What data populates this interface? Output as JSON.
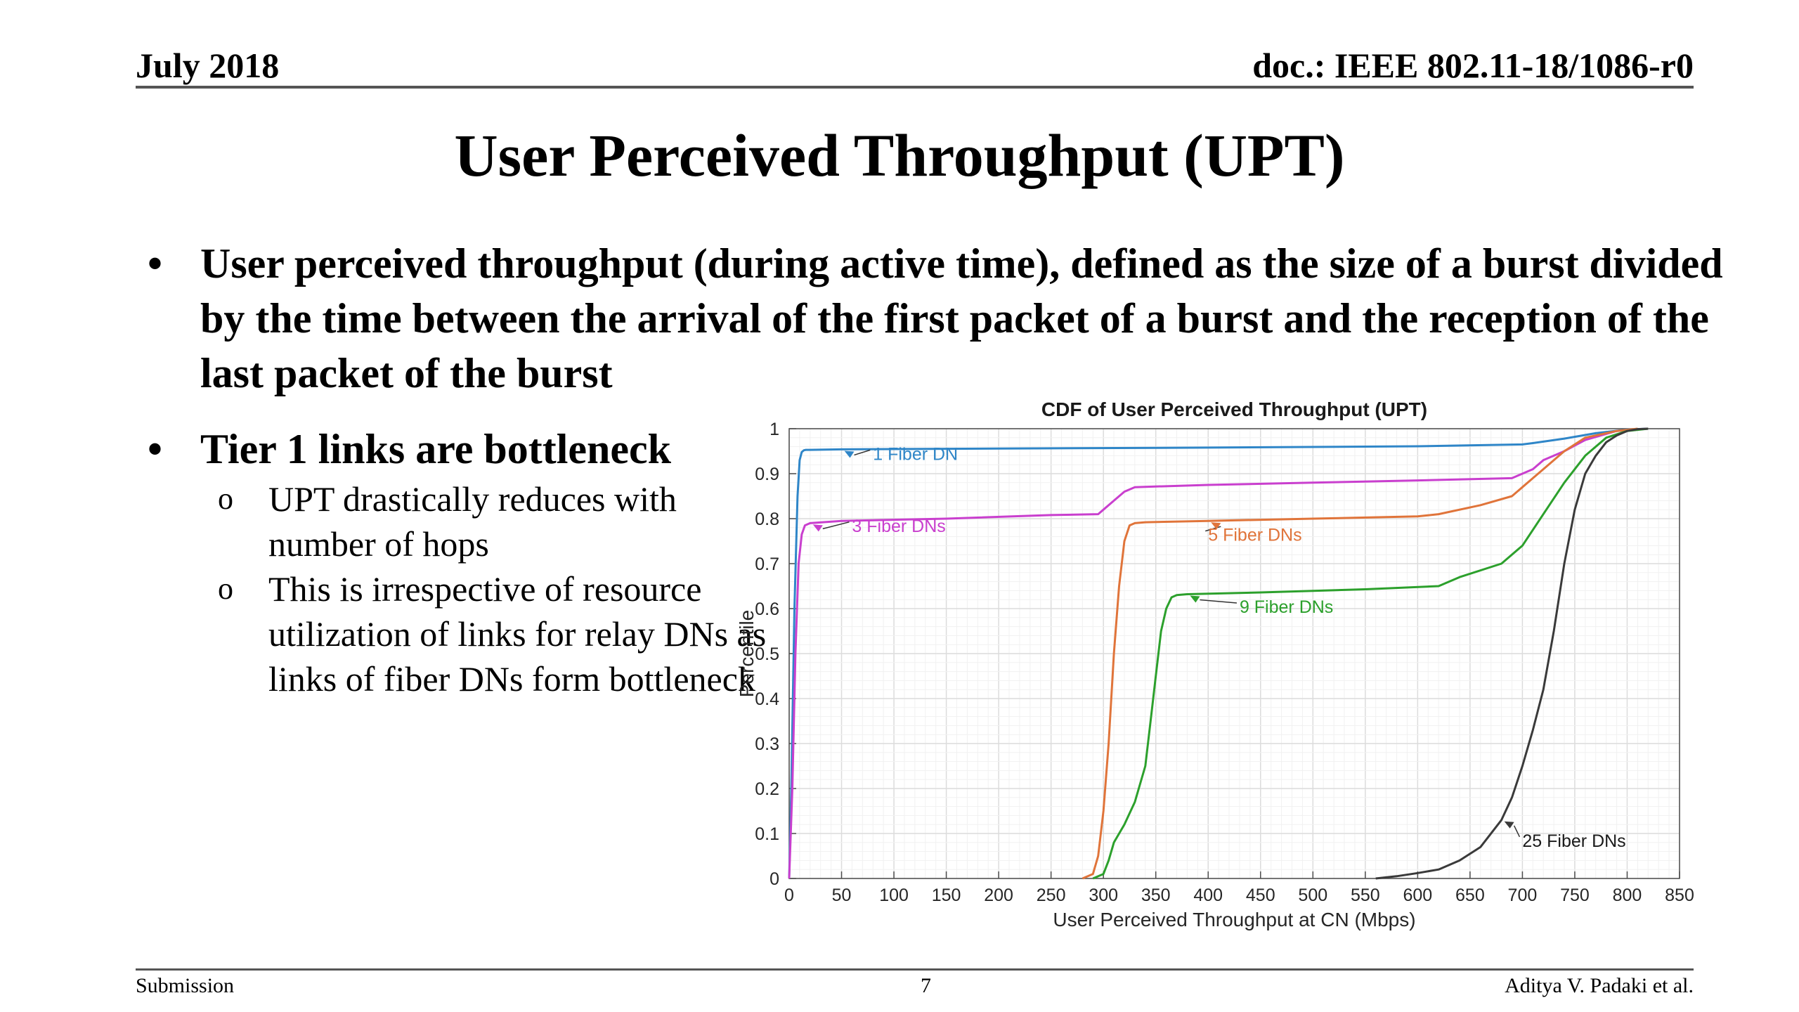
{
  "header": {
    "date": "July  2018",
    "doc": "doc.: IEEE 802.11-18/1086-r0"
  },
  "slide": {
    "title": "User Perceived Throughput (UPT)",
    "bullet_symbol": "•",
    "sub_symbol": "o",
    "bullets": [
      "User perceived throughput (during active time), defined as the size of a burst divided by the time between the arrival of the first packet of a burst and the reception of the last packet of the burst",
      "Tier 1 links are bottleneck"
    ],
    "sub_bullets": [
      "UPT drastically reduces with number of hops",
      "This is irrespective of resource utilization of links for relay DNs as links of fiber DNs form bottleneck"
    ]
  },
  "footer": {
    "left": "Submission",
    "page": "7",
    "right": "Aditya V. Padaki et al."
  },
  "chart_data": {
    "type": "line",
    "title": "CDF of User Perceived Throughput (UPT)",
    "xlabel": "User Perceived Throughput at CN (Mbps)",
    "ylabel": "Percentile",
    "xlim": [
      0,
      850
    ],
    "ylim": [
      0,
      1
    ],
    "xticks": [
      0,
      50,
      100,
      150,
      200,
      250,
      300,
      350,
      400,
      450,
      500,
      550,
      600,
      650,
      700,
      750,
      800,
      850
    ],
    "yticks": [
      0,
      0.1,
      0.2,
      0.3,
      0.4,
      0.5,
      0.6,
      0.7,
      0.8,
      0.9,
      1
    ],
    "grid": true,
    "series": [
      {
        "name": "1 Fiber DN",
        "color": "#2f86c8",
        "label_at": [
          80,
          0.94
        ],
        "x": [
          0,
          2,
          5,
          8,
          10,
          12,
          14,
          16,
          20,
          50,
          200,
          400,
          600,
          700,
          710,
          740,
          770,
          800,
          820
        ],
        "y": [
          0,
          0.2,
          0.6,
          0.85,
          0.93,
          0.948,
          0.952,
          0.953,
          0.953,
          0.954,
          0.956,
          0.958,
          0.961,
          0.965,
          0.968,
          0.978,
          0.99,
          0.998,
          1.0
        ]
      },
      {
        "name": "3 Fiber DNs",
        "color": "#c93fce",
        "label_at": [
          60,
          0.78
        ],
        "x": [
          0,
          3,
          6,
          9,
          12,
          15,
          20,
          50,
          150,
          250,
          295,
          300,
          310,
          320,
          330,
          400,
          500,
          600,
          690,
          700,
          710,
          720,
          740,
          760,
          790,
          820
        ],
        "y": [
          0,
          0.2,
          0.5,
          0.7,
          0.765,
          0.785,
          0.79,
          0.795,
          0.8,
          0.808,
          0.81,
          0.82,
          0.84,
          0.86,
          0.87,
          0.875,
          0.88,
          0.885,
          0.89,
          0.9,
          0.91,
          0.93,
          0.95,
          0.975,
          0.995,
          1.0
        ]
      },
      {
        "name": "5 Fiber DNs",
        "color": "#e0743a",
        "label_at": [
          400,
          0.76
        ],
        "x": [
          280,
          290,
          295,
          300,
          305,
          310,
          315,
          320,
          325,
          330,
          340,
          400,
          500,
          600,
          620,
          660,
          690,
          700,
          710,
          720,
          740,
          760,
          790,
          810
        ],
        "y": [
          0,
          0.01,
          0.05,
          0.15,
          0.3,
          0.5,
          0.65,
          0.75,
          0.785,
          0.79,
          0.792,
          0.795,
          0.8,
          0.805,
          0.81,
          0.83,
          0.85,
          0.87,
          0.89,
          0.91,
          0.95,
          0.98,
          0.995,
          1.0
        ]
      },
      {
        "name": "9 Fiber DNs",
        "color": "#2ca02c",
        "label_at": [
          430,
          0.6
        ],
        "x": [
          290,
          300,
          305,
          310,
          320,
          330,
          340,
          345,
          350,
          355,
          360,
          365,
          370,
          380,
          450,
          550,
          620,
          640,
          680,
          700,
          720,
          740,
          760,
          780,
          800,
          820
        ],
        "y": [
          0,
          0.01,
          0.04,
          0.08,
          0.12,
          0.17,
          0.25,
          0.35,
          0.45,
          0.55,
          0.6,
          0.625,
          0.63,
          0.632,
          0.636,
          0.643,
          0.65,
          0.67,
          0.7,
          0.74,
          0.81,
          0.88,
          0.94,
          0.98,
          0.995,
          1.0
        ]
      },
      {
        "name": "25 Fiber DNs",
        "color": "#3a3a3a",
        "label_at": [
          700,
          0.08
        ],
        "x": [
          560,
          580,
          600,
          620,
          640,
          660,
          680,
          690,
          700,
          710,
          720,
          730,
          740,
          750,
          760,
          770,
          780,
          790,
          800,
          810,
          820
        ],
        "y": [
          0,
          0.005,
          0.012,
          0.02,
          0.04,
          0.07,
          0.13,
          0.18,
          0.25,
          0.33,
          0.42,
          0.55,
          0.7,
          0.82,
          0.9,
          0.94,
          0.97,
          0.985,
          0.995,
          0.999,
          1.0
        ]
      }
    ]
  }
}
